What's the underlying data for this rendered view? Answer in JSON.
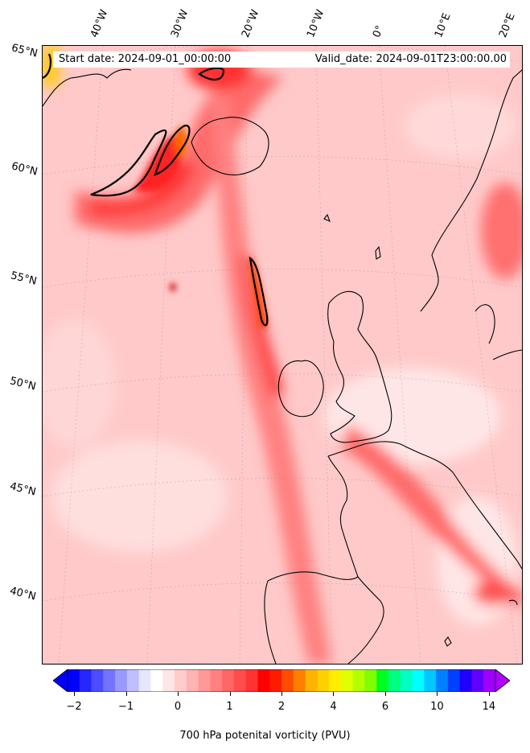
{
  "header": {
    "start_date": "Start date: 2024-09-01_00:00:00",
    "valid_date": "Valid_date: 2024-09-01T23:00:00.00"
  },
  "map": {
    "projection": "lambert-conformal",
    "lon_labels": [
      "40°W",
      "30°W",
      "20°W",
      "10°W",
      "0°",
      "10°E",
      "20°E"
    ],
    "lat_labels": [
      "65°N",
      "60°N",
      "55°N",
      "50°N",
      "45°N",
      "40°N"
    ],
    "field": "700 hPa potential vorticity",
    "regions_shown": [
      "North Atlantic",
      "Iceland",
      "Ireland",
      "Great Britain",
      "France",
      "Iberia",
      "Scandinavia"
    ]
  },
  "colorbar": {
    "label": "700 hPa potenital vorticity (PVU)",
    "tick_labels": [
      "−2",
      "−1",
      "0",
      "1",
      "2",
      "4",
      "6",
      "10",
      "14"
    ],
    "extend": "both",
    "colors": [
      "#0000ff",
      "#2626ff",
      "#4d4dff",
      "#7373ff",
      "#9999ff",
      "#bfbfff",
      "#e6e6ff",
      "#ffffff",
      "#ffe6e6",
      "#ffcccc",
      "#ffb3b3",
      "#ff9999",
      "#ff8080",
      "#ff6666",
      "#ff4d4d",
      "#ff3333",
      "#ff0000",
      "#ff1a00",
      "#ff4d00",
      "#ff8000",
      "#ffb300",
      "#ffd000",
      "#ffee00",
      "#e0ff00",
      "#b3ff00",
      "#80ff00",
      "#00ff20",
      "#00ff80",
      "#00ffc0",
      "#00ffff",
      "#00c8ff",
      "#0080ff",
      "#0040ff",
      "#2000ff",
      "#6000ff",
      "#a000ff"
    ],
    "under_color": "#0000ff",
    "over_color": "#b000ff"
  }
}
